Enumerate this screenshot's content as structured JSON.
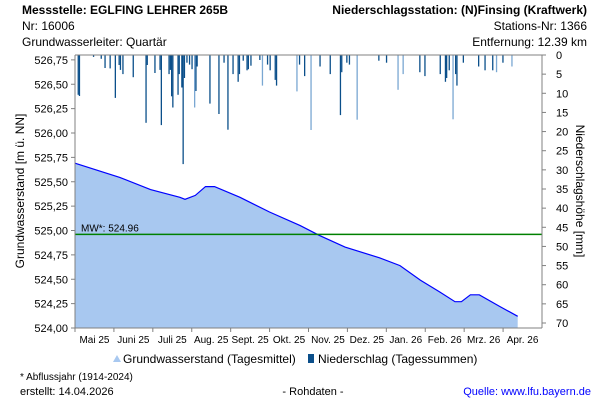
{
  "header": {
    "station": "Messstelle: EGLFING LEHRER 265B",
    "nr": "Nr: 16006",
    "aquifer": "Grundwasserleiter: Quartär",
    "precip_station": "Niederschlagsstation: (N)Finsing (Kraftwerk)",
    "station_nr": "Stations-Nr: 1366",
    "distance": "Entfernung: 12.39 km"
  },
  "footer": {
    "note": "* Abflussjahr (1914-2024)",
    "created": "erstellt:  14.04.2026",
    "raw": "- Rohdaten -",
    "source": "Quelle: www.lfu.bayern.de"
  },
  "chart_data": {
    "type": "area",
    "ylabel": "Grundwasserstand [m ü. NN]",
    "y2label": "Niederschlagshöhe [mm]",
    "ylim": [
      524.0,
      526.8
    ],
    "y2lim": [
      0,
      70
    ],
    "yticks": [
      "526,75",
      "526,50",
      "526,25",
      "526,00",
      "525,75",
      "525,50",
      "525,25",
      "525,00",
      "524,75",
      "524,50",
      "524,25",
      "524,00"
    ],
    "y2ticks": [
      "0",
      "5",
      "10",
      "15",
      "20",
      "25",
      "30",
      "35",
      "40",
      "45",
      "50",
      "55",
      "60",
      "65",
      "70"
    ],
    "xticks": [
      "Mai 25",
      "Juni 25",
      "Juli 25",
      "Aug. 25",
      "Sept. 25",
      "Okt. 25",
      "Nov. 25",
      "Dez. 25",
      "Jan. 26",
      "Feb. 26",
      "Mrz. 26",
      "Apr. 26"
    ],
    "x_unit": "days since 2025-05-01",
    "xlim": [
      0,
      365
    ],
    "mean_line": {
      "label": "MW*: 524.96",
      "value": 524.96,
      "color": "#008000"
    },
    "legend": [
      {
        "label": "Grundwasserstand (Tagesmittel)",
        "color": "#a8c8f0"
      },
      {
        "label": "Niederschlag (Tagessummen)",
        "color": "#0b4f8a"
      }
    ],
    "groundwater": [
      [
        0,
        525.69
      ],
      [
        35,
        525.545
      ],
      [
        59,
        525.42
      ],
      [
        82,
        525.34
      ],
      [
        86,
        525.32
      ],
      [
        94,
        525.36
      ],
      [
        102,
        525.45
      ],
      [
        109,
        525.45
      ],
      [
        129,
        525.34
      ],
      [
        152,
        525.19
      ],
      [
        176,
        525.05
      ],
      [
        191,
        524.95
      ],
      [
        211,
        524.83
      ],
      [
        238,
        524.72
      ],
      [
        254,
        524.64
      ],
      [
        270,
        524.49
      ],
      [
        285,
        524.37
      ],
      [
        297,
        524.27
      ],
      [
        302,
        524.27
      ],
      [
        309,
        524.34
      ],
      [
        316,
        524.34
      ],
      [
        332,
        524.22
      ],
      [
        346,
        524.12
      ]
    ],
    "precipitation": [
      [
        2,
        10.4
      ],
      [
        3,
        10.7
      ],
      [
        14,
        0.5
      ],
      [
        20,
        1
      ],
      [
        23,
        3.4
      ],
      [
        27,
        3.5
      ],
      [
        31,
        11.2
      ],
      [
        34,
        2.6
      ],
      [
        35,
        3.9
      ],
      [
        37,
        5
      ],
      [
        45,
        5.8
      ],
      [
        55,
        17.7
      ],
      [
        56,
        2.6
      ],
      [
        62,
        4.7
      ],
      [
        66,
        3.9
      ],
      [
        67,
        18.3
      ],
      [
        73,
        5
      ],
      [
        74,
        3.9
      ],
      [
        75,
        10.8
      ],
      [
        76,
        13.7
      ],
      [
        80,
        10.4
      ],
      [
        81,
        5
      ],
      [
        83,
        8.5
      ],
      [
        84,
        28.5
      ],
      [
        85,
        6
      ],
      [
        87,
        2
      ],
      [
        89,
        2.5
      ],
      [
        91,
        3.7
      ],
      [
        93,
        13.7
      ],
      [
        94,
        9.4
      ],
      [
        95,
        3
      ],
      [
        105,
        12.7
      ],
      [
        112,
        15.4
      ],
      [
        116,
        2
      ],
      [
        119,
        19.5
      ],
      [
        123,
        5
      ],
      [
        127,
        7
      ],
      [
        128,
        5
      ],
      [
        131,
        1.5
      ],
      [
        134,
        4
      ],
      [
        135,
        3.7
      ],
      [
        137,
        2.8
      ],
      [
        144,
        1.3
      ],
      [
        146,
        8
      ],
      [
        150,
        2.5
      ],
      [
        152,
        4
      ],
      [
        156,
        6.5
      ],
      [
        157,
        8
      ],
      [
        173,
        9.5
      ],
      [
        175,
        2.5
      ],
      [
        179,
        5.5
      ],
      [
        184,
        19.6
      ],
      [
        191,
        3
      ],
      [
        199,
        5
      ],
      [
        207,
        15.7
      ],
      [
        208,
        4.5
      ],
      [
        212,
        2
      ],
      [
        214,
        2.5
      ],
      [
        220,
        16.9
      ],
      [
        237,
        1.5
      ],
      [
        243,
        2
      ],
      [
        252,
        9.1
      ],
      [
        256,
        5
      ],
      [
        269,
        4.5
      ],
      [
        273,
        5.5
      ],
      [
        285,
        5
      ],
      [
        289,
        7
      ],
      [
        290,
        6
      ],
      [
        292,
        4
      ],
      [
        295,
        16.8
      ],
      [
        297,
        5
      ],
      [
        298,
        8
      ],
      [
        303,
        2
      ],
      [
        315,
        3
      ],
      [
        320,
        4
      ],
      [
        326,
        4
      ],
      [
        329,
        4.5
      ],
      [
        334,
        2
      ],
      [
        341,
        3
      ]
    ]
  }
}
